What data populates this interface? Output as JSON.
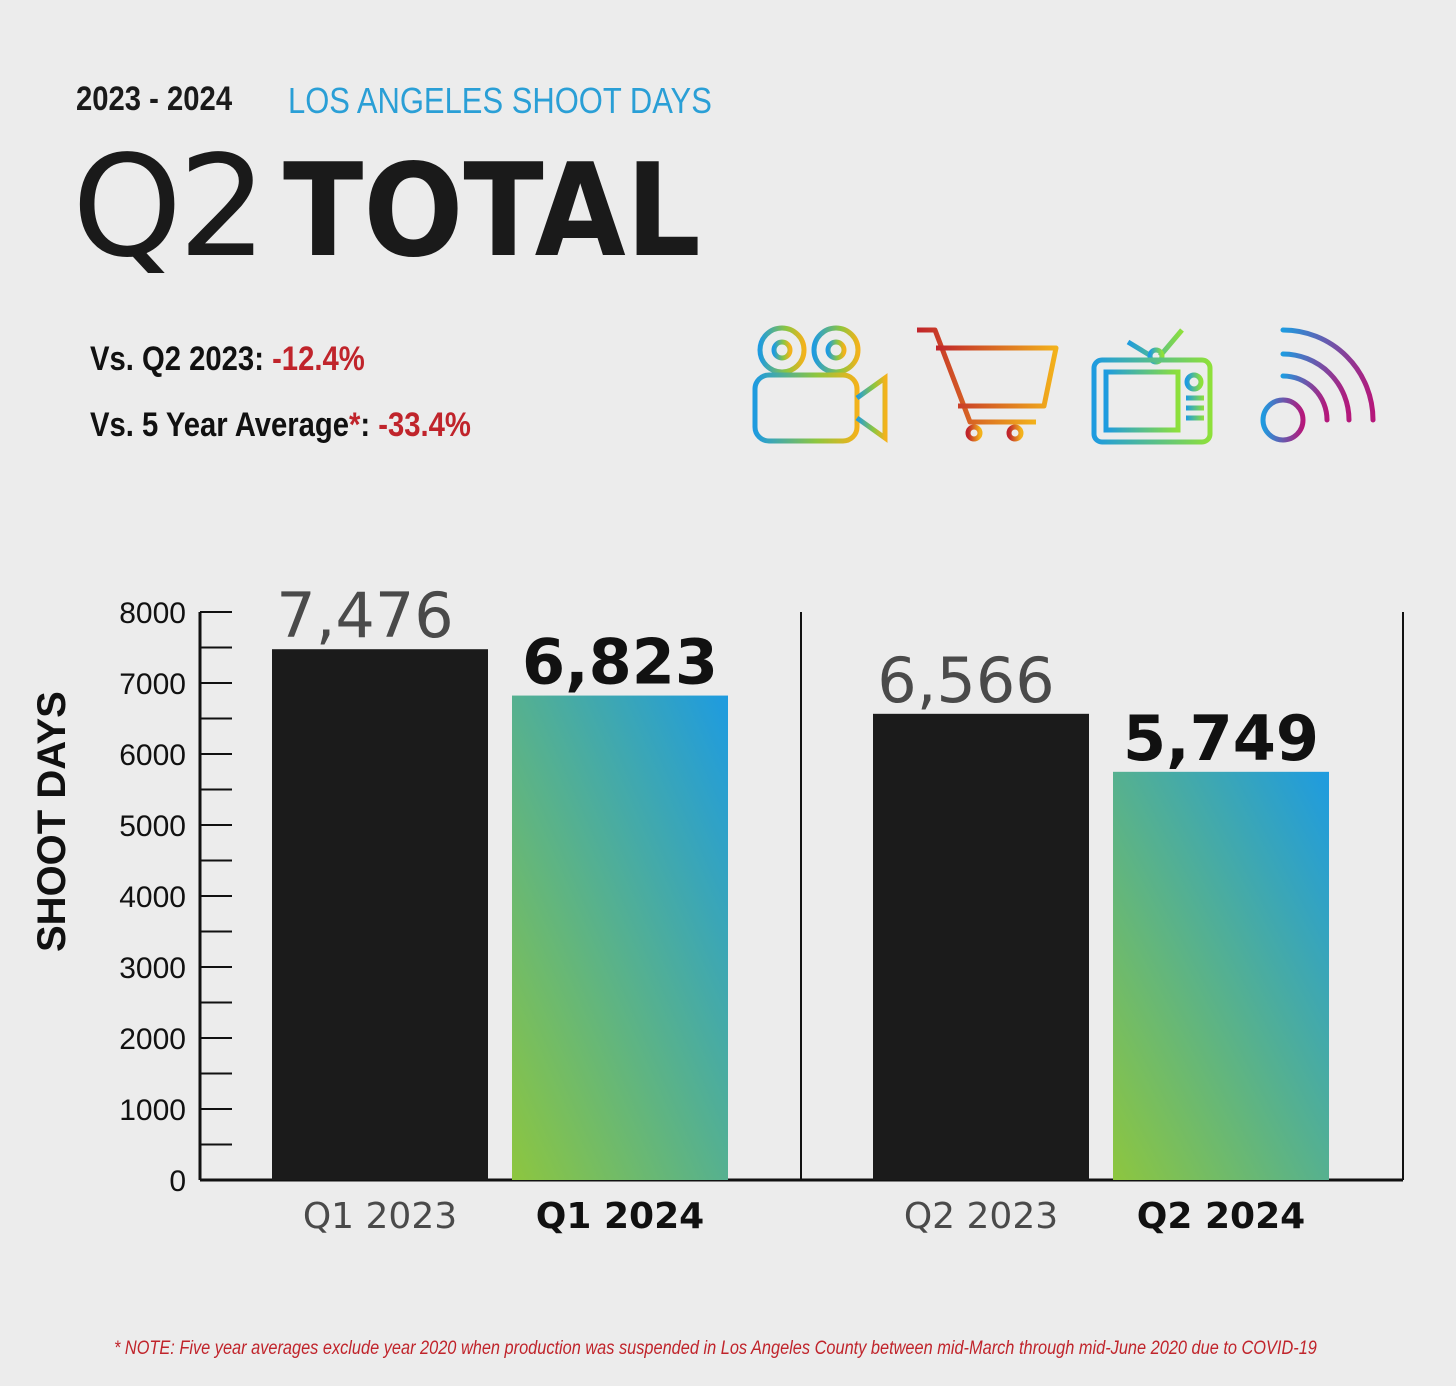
{
  "header": {
    "years": "2023 - 2024",
    "subtitle": "LOS ANGELES SHOOT DAYS",
    "title_q": "Q2",
    "title_total": "TOTAL"
  },
  "stats": {
    "vs_q2_label": "Vs. Q2 2023:",
    "vs_q2_value": "-12.4%",
    "vs_5yr_label": "Vs. 5 Year Average",
    "vs_5yr_star": "*",
    "vs_5yr_colon": ":",
    "vs_5yr_value": "-33.4%"
  },
  "icons": [
    "film-camera-icon",
    "shopping-cart-icon",
    "television-icon",
    "broadcast-signal-icon"
  ],
  "colors": {
    "black_bar": "#1b1b1b",
    "gradient_top": "#1e9be0",
    "gradient_bottom": "#8dc63f",
    "negative": "#c0242b",
    "accent": "#2a9fd6"
  },
  "chart_data": {
    "type": "bar",
    "categories": [
      "Q1 2023",
      "Q1 2024",
      "Q2 2023",
      "Q2 2024"
    ],
    "values": [
      7476,
      6823,
      6566,
      5749
    ],
    "value_labels": [
      "7,476",
      "6,823",
      "6,566",
      "5,749"
    ],
    "ylabel": "SHOOT DAYS",
    "ylim": [
      0,
      8000
    ],
    "yticks": [
      0,
      1000,
      2000,
      3000,
      4000,
      5000,
      6000,
      7000,
      8000
    ],
    "grid": false
  },
  "footnote": "* NOTE: Five year averages exclude year 2020 when production was suspended in Los Angeles County between mid-March through mid-June 2020 due to COVID-19"
}
